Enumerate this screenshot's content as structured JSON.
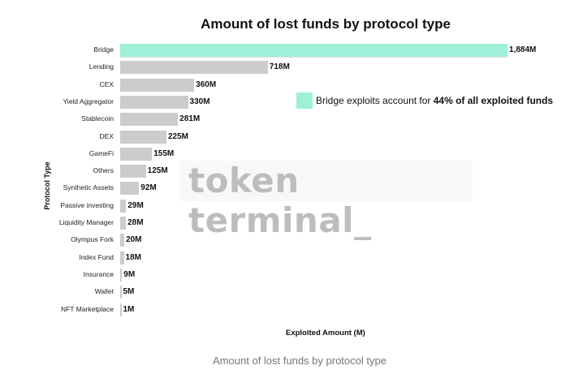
{
  "chart_data": {
    "type": "bar",
    "orientation": "horizontal",
    "title": "Amount of lost funds by protocol type",
    "xlabel": "Exploited Amount (M)",
    "ylabel": "Protocol Type",
    "categories": [
      "Bridge",
      "Lending",
      "CEX",
      "Yield Aggregator",
      "Stablecoin",
      "DEX",
      "GameFi",
      "Others",
      "Synthetic Assets",
      "Passive investing",
      "Liquidity Manager",
      "Olympus Fork",
      "Index Fund",
      "Insurance",
      "Wallet",
      "NFT Marketplace"
    ],
    "values": [
      1884,
      718,
      360,
      330,
      281,
      225,
      155,
      125,
      92,
      29,
      28,
      20,
      18,
      9,
      5,
      1
    ],
    "value_labels": [
      "1,884M",
      "718M",
      "360M",
      "330M",
      "281M",
      "225M",
      "155M",
      "125M",
      "92M",
      "29M",
      "28M",
      "20M",
      "18M",
      "9M",
      "5M",
      "1M"
    ],
    "colors": {
      "highlight": "#9ef0d8",
      "default": "#cccccc"
    },
    "highlight_index": 0,
    "grid": false,
    "legend": {
      "position": "right",
      "text_prefix": "Bridge exploits account for ",
      "text_bold": "44% of all exploited funds"
    },
    "xlim": [
      0,
      1884
    ]
  },
  "watermark": "token terminal_",
  "caption": "Amount of lost funds by protocol type"
}
